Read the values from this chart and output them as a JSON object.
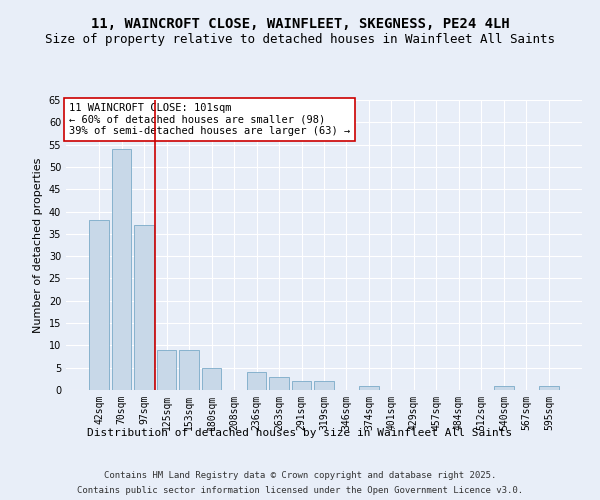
{
  "title": "11, WAINCROFT CLOSE, WAINFLEET, SKEGNESS, PE24 4LH",
  "subtitle": "Size of property relative to detached houses in Wainfleet All Saints",
  "xlabel": "Distribution of detached houses by size in Wainfleet All Saints",
  "ylabel": "Number of detached properties",
  "categories": [
    "42sqm",
    "70sqm",
    "97sqm",
    "125sqm",
    "153sqm",
    "180sqm",
    "208sqm",
    "236sqm",
    "263sqm",
    "291sqm",
    "319sqm",
    "346sqm",
    "374sqm",
    "401sqm",
    "429sqm",
    "457sqm",
    "484sqm",
    "512sqm",
    "540sqm",
    "567sqm",
    "595sqm"
  ],
  "values": [
    38,
    54,
    37,
    9,
    9,
    5,
    0,
    4,
    3,
    2,
    2,
    0,
    1,
    0,
    0,
    0,
    0,
    0,
    1,
    0,
    1
  ],
  "bar_color": "#c8d8e8",
  "bar_edge_color": "#7aaac8",
  "vline_x": 2.5,
  "vline_color": "#cc0000",
  "annotation_text": "11 WAINCROFT CLOSE: 101sqm\n← 60% of detached houses are smaller (98)\n39% of semi-detached houses are larger (63) →",
  "annotation_box_color": "#ffffff",
  "annotation_box_edge_color": "#cc0000",
  "ylim": [
    0,
    65
  ],
  "yticks": [
    0,
    5,
    10,
    15,
    20,
    25,
    30,
    35,
    40,
    45,
    50,
    55,
    60,
    65
  ],
  "background_color": "#e8eef8",
  "grid_color": "#ffffff",
  "footer_line1": "Contains HM Land Registry data © Crown copyright and database right 2025.",
  "footer_line2": "Contains public sector information licensed under the Open Government Licence v3.0.",
  "title_fontsize": 10,
  "subtitle_fontsize": 9,
  "xlabel_fontsize": 8,
  "ylabel_fontsize": 8,
  "tick_fontsize": 7,
  "footer_fontsize": 6.5,
  "annotation_fontsize": 7.5
}
